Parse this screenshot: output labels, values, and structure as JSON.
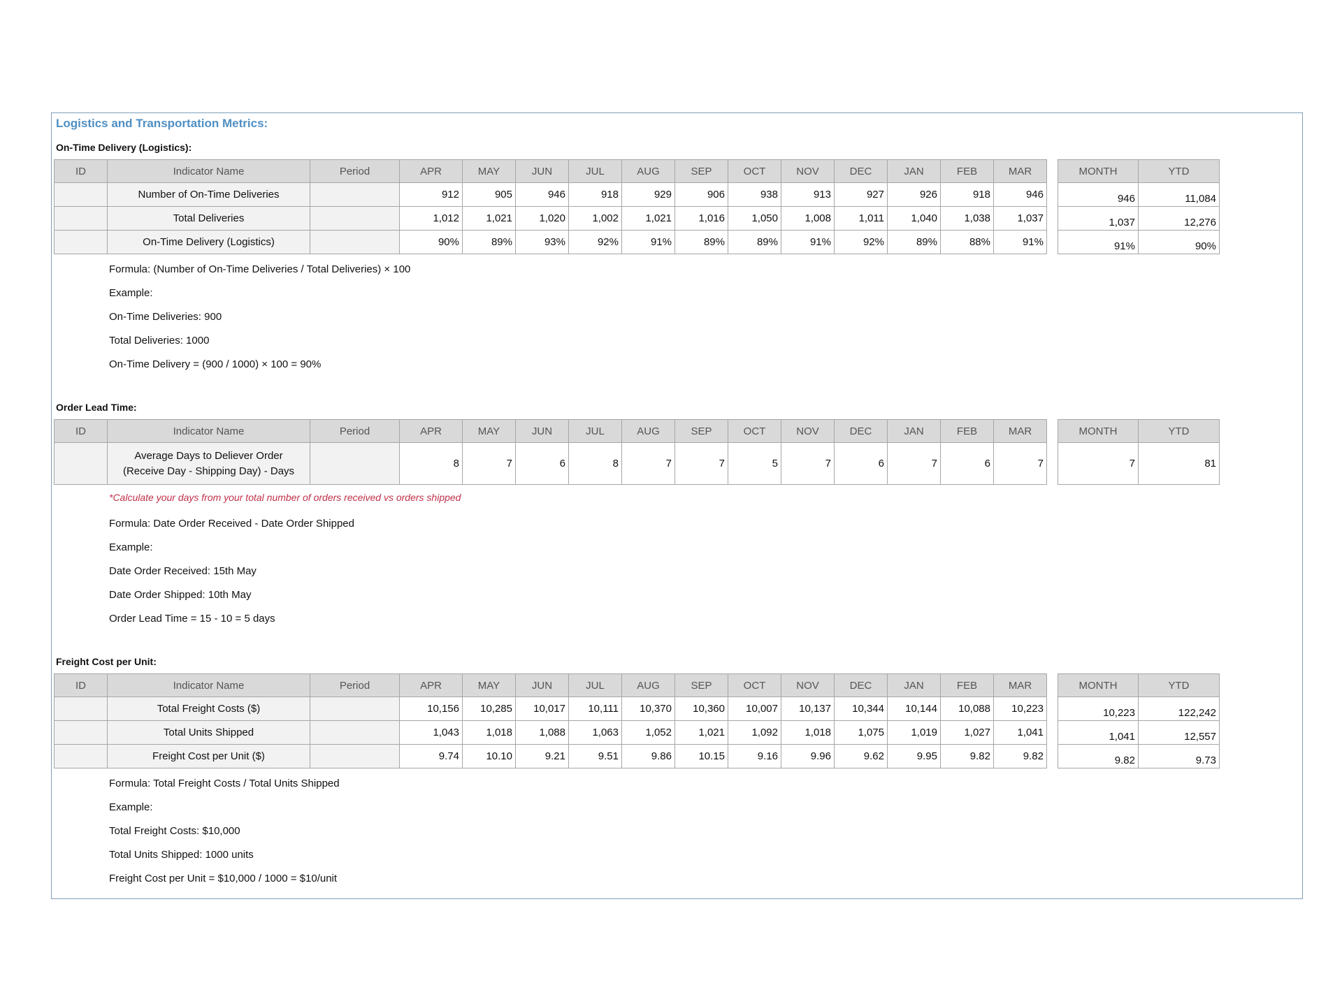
{
  "title": "Logistics and Transportation Metrics:",
  "header": {
    "id": "ID",
    "indicator": "Indicator Name",
    "period": "Period",
    "months": [
      "APR",
      "MAY",
      "JUN",
      "JUL",
      "AUG",
      "SEP",
      "OCT",
      "NOV",
      "DEC",
      "JAN",
      "FEB",
      "MAR"
    ],
    "month": "MONTH",
    "ytd": "YTD"
  },
  "otd": {
    "title": "On-Time Delivery (Logistics):",
    "rows": [
      {
        "name": "Number of On-Time Deliveries",
        "values": [
          "912",
          "905",
          "946",
          "918",
          "929",
          "906",
          "938",
          "913",
          "927",
          "926",
          "918",
          "946"
        ],
        "month": "946",
        "ytd": "11,084"
      },
      {
        "name": "Total Deliveries",
        "values": [
          "1,012",
          "1,021",
          "1,020",
          "1,002",
          "1,021",
          "1,016",
          "1,050",
          "1,008",
          "1,011",
          "1,040",
          "1,038",
          "1,037"
        ],
        "month": "1,037",
        "ytd": "12,276"
      },
      {
        "name": "On-Time Delivery (Logistics)",
        "values": [
          "90%",
          "89%",
          "93%",
          "92%",
          "91%",
          "89%",
          "89%",
          "91%",
          "92%",
          "89%",
          "88%",
          "91%"
        ],
        "month": "91%",
        "ytd": "90%"
      }
    ],
    "notes": [
      "Formula: (Number of On-Time Deliveries / Total Deliveries) × 100",
      "Example:",
      "On-Time Deliveries: 900",
      "Total Deliveries: 1000",
      "On-Time Delivery = (900 / 1000) × 100 = 90%"
    ]
  },
  "olt": {
    "title": "Order Lead Time:",
    "rows": [
      {
        "name_line1": "Average Days to Deliever Order",
        "name_line2": "(Receive Day - Shipping Day) - Days",
        "values": [
          "8",
          "7",
          "6",
          "8",
          "7",
          "7",
          "5",
          "7",
          "6",
          "7",
          "6",
          "7"
        ],
        "month": "7",
        "ytd": "81"
      }
    ],
    "warning": "*Calculate your days from your total number of orders received vs orders shipped",
    "notes": [
      "Formula: Date Order Received - Date Order Shipped",
      "Example:",
      "Date Order Received: 15th May",
      "Date Order Shipped: 10th May",
      "Order Lead Time = 15 - 10 = 5 days"
    ]
  },
  "fcu": {
    "title": "Freight Cost per Unit:",
    "rows": [
      {
        "name": "Total Freight Costs ($)",
        "values": [
          "10,156",
          "10,285",
          "10,017",
          "10,111",
          "10,370",
          "10,360",
          "10,007",
          "10,137",
          "10,344",
          "10,144",
          "10,088",
          "10,223"
        ],
        "month": "10,223",
        "ytd": "122,242"
      },
      {
        "name": "Total Units Shipped",
        "values": [
          "1,043",
          "1,018",
          "1,088",
          "1,063",
          "1,052",
          "1,021",
          "1,092",
          "1,018",
          "1,075",
          "1,019",
          "1,027",
          "1,041"
        ],
        "month": "1,041",
        "ytd": "12,557"
      },
      {
        "name": "Freight Cost per Unit ($)",
        "values": [
          "9.74",
          "10.10",
          "9.21",
          "9.51",
          "9.86",
          "10.15",
          "9.16",
          "9.96",
          "9.62",
          "9.95",
          "9.82",
          "9.82"
        ],
        "month": "9.82",
        "ytd": "9.73"
      }
    ],
    "notes": [
      "Formula: Total Freight Costs / Total Units Shipped",
      "Example:",
      "Total Freight Costs: $10,000",
      "Total Units Shipped: 1000 units",
      "Freight Cost per Unit = $10,000 / 1000 = $10/unit"
    ]
  }
}
